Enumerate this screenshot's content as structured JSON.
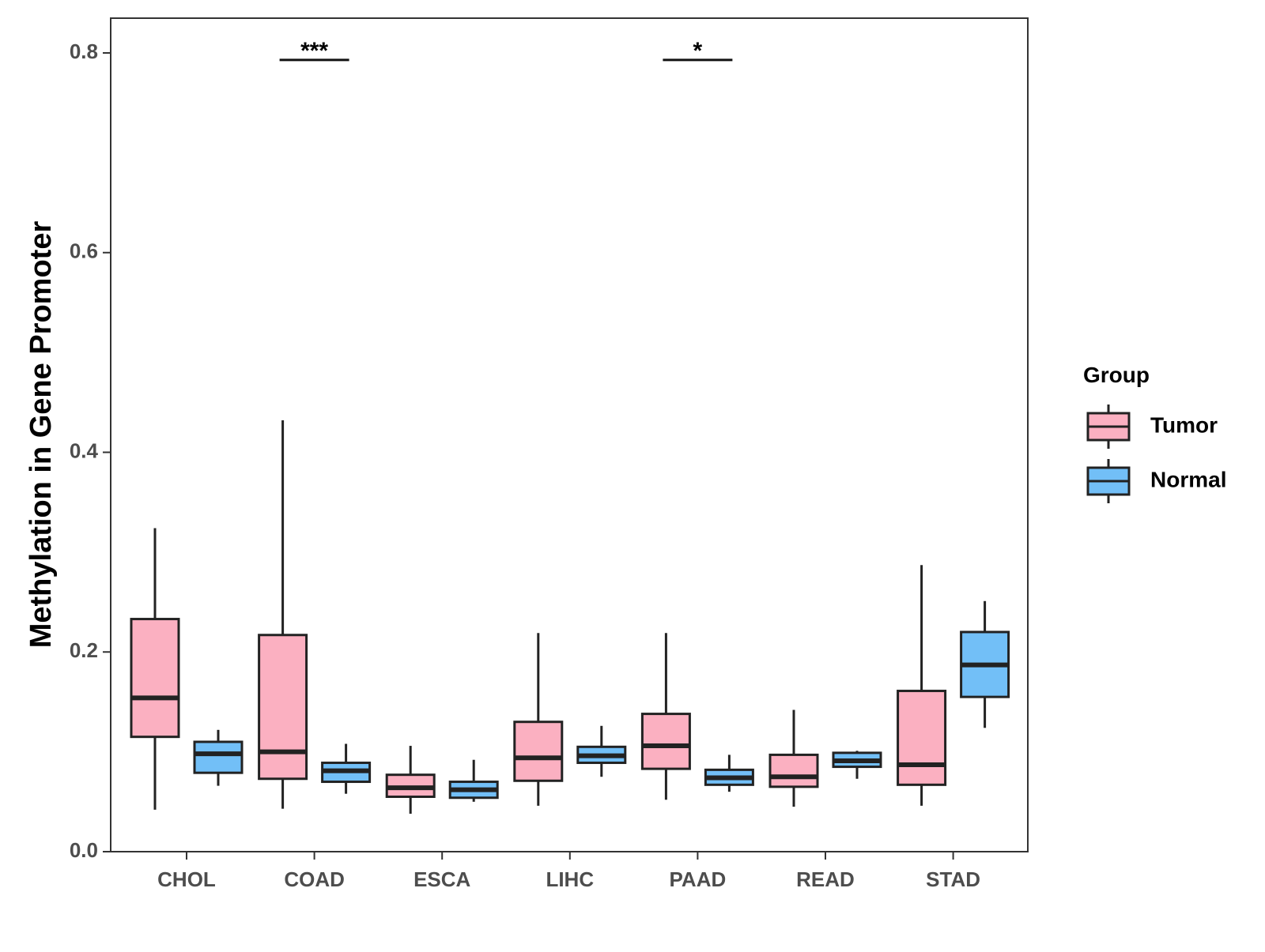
{
  "chart_data": {
    "type": "boxplot",
    "title": "",
    "xlabel": "",
    "ylabel": "Methylation in Gene Promoter",
    "ylim": [
      0,
      0.835
    ],
    "yticks": [
      "0.0",
      "0.2",
      "0.4",
      "0.6",
      "0.8"
    ],
    "ytick_values": [
      0,
      0.2,
      0.4,
      0.6,
      0.8
    ],
    "categories": [
      "CHOL",
      "COAD",
      "ESCA",
      "LIHC",
      "PAAD",
      "READ",
      "STAD"
    ],
    "legend": {
      "title": "Group",
      "position": "right"
    },
    "series": [
      {
        "name": "Tumor",
        "color": "#FBB0C1",
        "boxes": [
          {
            "min": 0.042,
            "q1": 0.115,
            "median": 0.154,
            "q3": 0.233,
            "max": 0.324
          },
          {
            "min": 0.043,
            "q1": 0.073,
            "median": 0.1,
            "q3": 0.217,
            "max": 0.432
          },
          {
            "min": 0.038,
            "q1": 0.055,
            "median": 0.064,
            "q3": 0.077,
            "max": 0.106
          },
          {
            "min": 0.046,
            "q1": 0.071,
            "median": 0.094,
            "q3": 0.13,
            "max": 0.219
          },
          {
            "min": 0.052,
            "q1": 0.083,
            "median": 0.106,
            "q3": 0.138,
            "max": 0.219
          },
          {
            "min": 0.045,
            "q1": 0.065,
            "median": 0.075,
            "q3": 0.097,
            "max": 0.142
          },
          {
            "min": 0.046,
            "q1": 0.067,
            "median": 0.087,
            "q3": 0.161,
            "max": 0.287
          }
        ]
      },
      {
        "name": "Normal",
        "color": "#72BFF7",
        "boxes": [
          {
            "min": 0.066,
            "q1": 0.079,
            "median": 0.098,
            "q3": 0.11,
            "max": 0.122
          },
          {
            "min": 0.058,
            "q1": 0.07,
            "median": 0.081,
            "q3": 0.089,
            "max": 0.108
          },
          {
            "min": 0.05,
            "q1": 0.054,
            "median": 0.062,
            "q3": 0.07,
            "max": 0.092
          },
          {
            "min": 0.075,
            "q1": 0.089,
            "median": 0.096,
            "q3": 0.105,
            "max": 0.126
          },
          {
            "min": 0.06,
            "q1": 0.067,
            "median": 0.074,
            "q3": 0.082,
            "max": 0.097
          },
          {
            "min": 0.073,
            "q1": 0.085,
            "median": 0.091,
            "q3": 0.099,
            "max": 0.101
          },
          {
            "min": 0.124,
            "q1": 0.155,
            "median": 0.187,
            "q3": 0.22,
            "max": 0.251
          }
        ]
      }
    ],
    "annotations": [
      {
        "category": "COAD",
        "label": "***",
        "y": 0.793
      },
      {
        "category": "PAAD",
        "label": "*",
        "y": 0.793
      }
    ]
  }
}
